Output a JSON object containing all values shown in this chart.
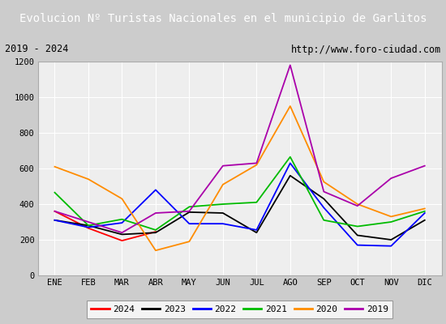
{
  "title": "Evolucion Nº Turistas Nacionales en el municipio de Garlitos",
  "subtitle_left": "2019 - 2024",
  "subtitle_right": "http://www.foro-ciudad.com",
  "months": [
    "ENE",
    "FEB",
    "MAR",
    "ABR",
    "MAY",
    "JUN",
    "JUL",
    "AGO",
    "SEP",
    "OCT",
    "NOV",
    "DIC"
  ],
  "series": {
    "2024": [
      360,
      265,
      195,
      245,
      null,
      null,
      null,
      null,
      null,
      null,
      null,
      null
    ],
    "2023": [
      310,
      280,
      230,
      240,
      355,
      350,
      240,
      560,
      430,
      225,
      200,
      310
    ],
    "2022": [
      310,
      270,
      295,
      480,
      290,
      290,
      255,
      630,
      380,
      170,
      165,
      350
    ],
    "2021": [
      465,
      280,
      315,
      255,
      385,
      400,
      410,
      665,
      310,
      275,
      300,
      360
    ],
    "2020": [
      610,
      540,
      430,
      140,
      190,
      510,
      620,
      950,
      525,
      400,
      330,
      375
    ],
    "2019": [
      360,
      300,
      240,
      350,
      360,
      615,
      630,
      1180,
      470,
      390,
      545,
      615
    ]
  },
  "colors": {
    "2024": "#ff0000",
    "2023": "#000000",
    "2022": "#0000ff",
    "2021": "#00bb00",
    "2020": "#ff8c00",
    "2019": "#aa00aa"
  },
  "ylim": [
    0,
    1200
  ],
  "yticks": [
    0,
    200,
    400,
    600,
    800,
    1000,
    1200
  ],
  "title_bg_color": "#5599dd",
  "title_text_color": "#ffffff",
  "plot_bg_color": "#eeeeee",
  "grid_color": "#ffffff",
  "outer_bg_color": "#cccccc",
  "subtitle_box_color": "#ffffff",
  "title_fontsize": 10,
  "axis_fontsize": 7.5,
  "legend_fontsize": 8
}
